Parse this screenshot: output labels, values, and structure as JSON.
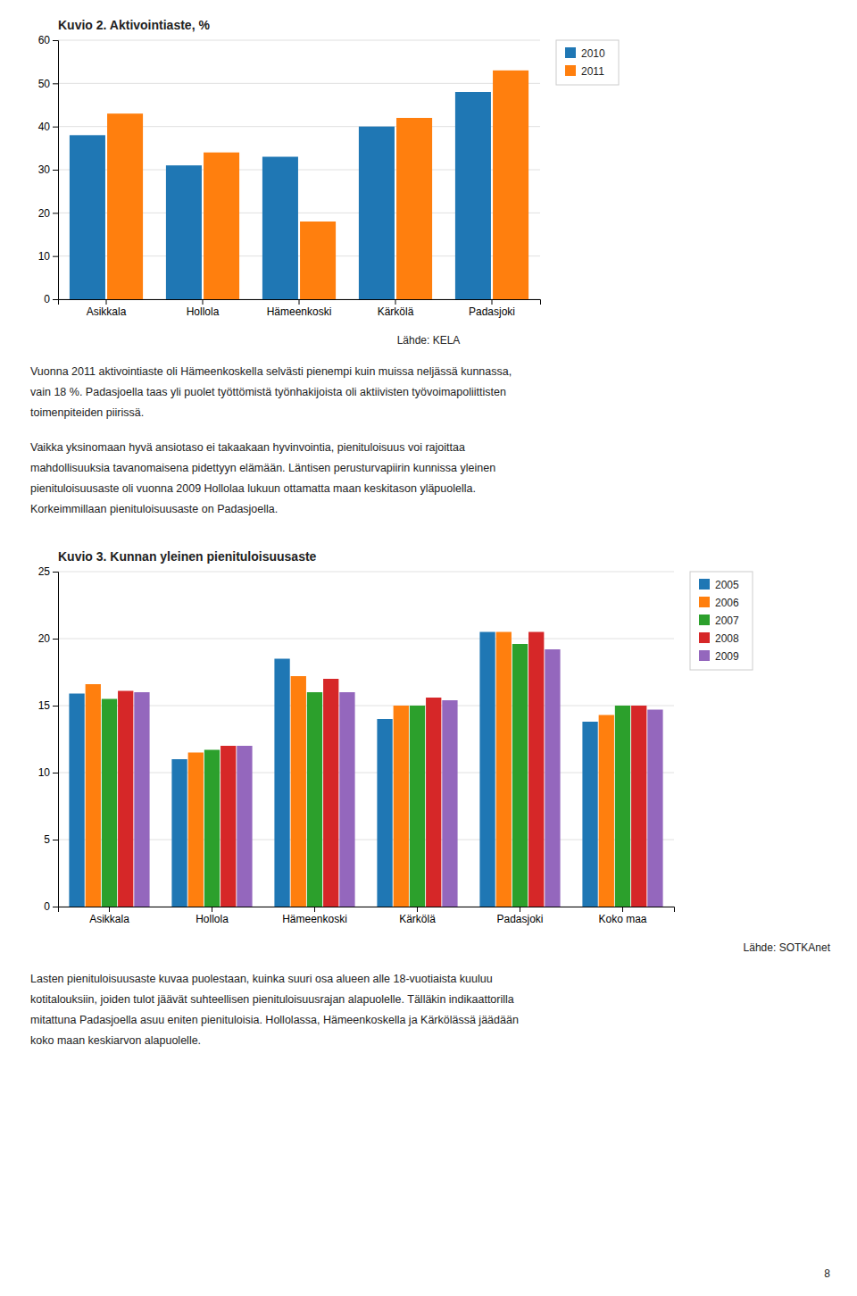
{
  "chart_data": [
    {
      "type": "bar",
      "title": "Kuvio 2. Aktivointiaste, %",
      "source": "Lähde: KELA",
      "categories": [
        "Asikkala",
        "Hollola",
        "Hämeenkoski",
        "Kärkölä",
        "Padasjoki"
      ],
      "series": [
        {
          "name": "2010",
          "values": [
            38,
            31,
            33,
            40,
            48
          ]
        },
        {
          "name": "2011",
          "values": [
            43,
            34,
            18,
            42,
            53
          ]
        }
      ],
      "ylim": [
        0,
        60
      ],
      "yticks": [
        0,
        10,
        20,
        30,
        40,
        50,
        60
      ],
      "grid": true,
      "legend": "right"
    },
    {
      "type": "bar",
      "title": "Kuvio 3. Kunnan yleinen pienituloisuusaste",
      "source": "Lähde: SOTKAnet",
      "categories": [
        "Asikkala",
        "Hollola",
        "Hämeenkoski",
        "Kärkölä",
        "Padasjoki",
        "Koko maa"
      ],
      "series": [
        {
          "name": "2005",
          "values": [
            15.9,
            11.0,
            18.5,
            14.0,
            20.5,
            13.8
          ]
        },
        {
          "name": "2006",
          "values": [
            16.6,
            11.5,
            17.2,
            15.0,
            20.5,
            14.3
          ]
        },
        {
          "name": "2007",
          "values": [
            15.5,
            11.7,
            16.0,
            15.0,
            19.6,
            15.0
          ]
        },
        {
          "name": "2008",
          "values": [
            16.1,
            12.0,
            17.0,
            15.6,
            20.5,
            15.0
          ]
        },
        {
          "name": "2009",
          "values": [
            16.0,
            12.0,
            16.0,
            15.4,
            19.2,
            14.7
          ]
        }
      ],
      "ylim": [
        0,
        25
      ],
      "yticks": [
        0,
        5,
        10,
        15,
        20,
        25
      ],
      "grid": true,
      "legend": "right"
    }
  ],
  "paragraphs": [
    [
      "Vuonna 2011 aktivointiaste oli Hämeenkoskella selvästi pienempi kuin muissa neljässä kunnassa,",
      "vain 18 %. Padasjoella taas yli puolet työttömistä työnhakijoista oli aktiivisten työvoimapoliittisten",
      "toimenpiteiden piirissä."
    ],
    [
      "Vaikka yksinomaan hyvä ansiotaso ei takaakaan hyvinvointia, pienituloisuus voi rajoittaa",
      "mahdollisuuksia tavanomaisena pidettyyn elämään. Läntisen perusturvapiirin kunnissa yleinen",
      "pienituloisuusaste oli vuonna 2009 Hollolaa lukuun ottamatta maan keskitason yläpuolella.",
      "Korkeimmillaan pienituloisuusaste on Padasjoella."
    ],
    [
      "Lasten pienituloisuusaste kuvaa puolestaan, kuinka suuri osa alueen alle 18-vuotiaista kuuluu",
      "kotitalouksiin, joiden tulot jäävät suhteellisen pienituloisuusrajan alapuolelle. Tälläkin indikaattorilla",
      "mitattuna Padasjoella asuu eniten pienituloisia. Hollolassa, Hämeenkoskella ja Kärkölässä jäädään",
      "koko maan keskiarvon alapuolelle."
    ]
  ],
  "page_number": "8"
}
